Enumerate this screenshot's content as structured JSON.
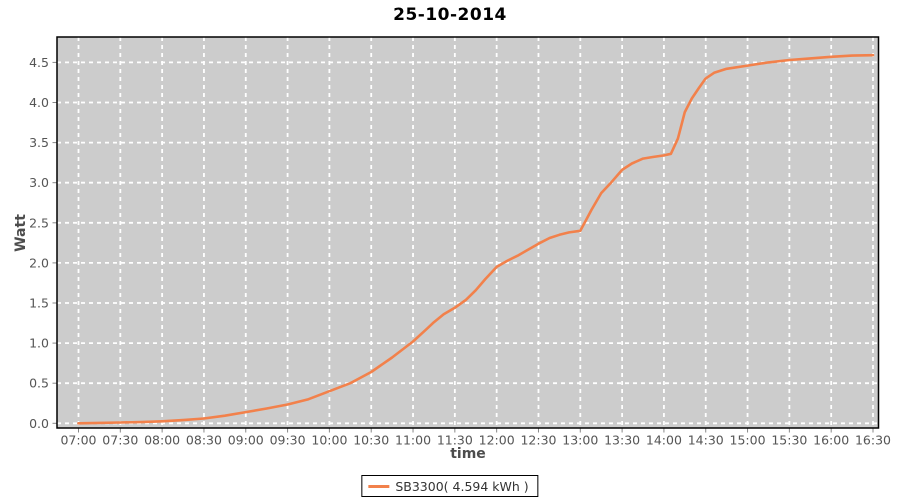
{
  "chart_data": {
    "type": "line",
    "title": "25-10-2014",
    "xlabel": "time",
    "ylabel": "Watt",
    "grid": true,
    "legend_position": "bottom",
    "plot_background": "#cccccc",
    "gridline_color": "#ffffff",
    "tick_label_color": "#555555",
    "x_tick_labels": [
      "07:00",
      "07:30",
      "08:00",
      "08:30",
      "09:00",
      "09:30",
      "10:00",
      "10:30",
      "11:00",
      "11:30",
      "12:00",
      "12:30",
      "13:00",
      "13:30",
      "14:00",
      "14:30",
      "15:00",
      "15:30",
      "16:00",
      "16:30"
    ],
    "y_tick_labels": [
      "0.0",
      "0.5",
      "1.0",
      "1.5",
      "2.0",
      "2.5",
      "3.0",
      "3.5",
      "4.0",
      "4.5"
    ],
    "ylim": [
      0,
      4.8
    ],
    "x_minutes_range": [
      0,
      570
    ],
    "total_kwh": 4.594,
    "series": [
      {
        "name": "SB3300( 4.594 kWh )",
        "color": "#f2814b",
        "points_minutes_kwh": [
          [
            0,
            0.0
          ],
          [
            15,
            0.005
          ],
          [
            30,
            0.01
          ],
          [
            45,
            0.015
          ],
          [
            60,
            0.025
          ],
          [
            75,
            0.04
          ],
          [
            90,
            0.06
          ],
          [
            105,
            0.095
          ],
          [
            120,
            0.14
          ],
          [
            135,
            0.185
          ],
          [
            150,
            0.235
          ],
          [
            165,
            0.3
          ],
          [
            180,
            0.4
          ],
          [
            195,
            0.5
          ],
          [
            210,
            0.64
          ],
          [
            225,
            0.82
          ],
          [
            240,
            1.02
          ],
          [
            250,
            1.18
          ],
          [
            255,
            1.26
          ],
          [
            262,
            1.36
          ],
          [
            270,
            1.44
          ],
          [
            278,
            1.54
          ],
          [
            285,
            1.66
          ],
          [
            292,
            1.8
          ],
          [
            300,
            1.95
          ],
          [
            308,
            2.03
          ],
          [
            315,
            2.09
          ],
          [
            322,
            2.16
          ],
          [
            330,
            2.24
          ],
          [
            338,
            2.31
          ],
          [
            345,
            2.35
          ],
          [
            352,
            2.38
          ],
          [
            360,
            2.4
          ],
          [
            364,
            2.53
          ],
          [
            368,
            2.66
          ],
          [
            375,
            2.87
          ],
          [
            382,
            3.0
          ],
          [
            390,
            3.16
          ],
          [
            397,
            3.24
          ],
          [
            405,
            3.3
          ],
          [
            412,
            3.32
          ],
          [
            420,
            3.34
          ],
          [
            425,
            3.36
          ],
          [
            430,
            3.55
          ],
          [
            435,
            3.88
          ],
          [
            440,
            4.05
          ],
          [
            445,
            4.18
          ],
          [
            450,
            4.3
          ],
          [
            456,
            4.37
          ],
          [
            465,
            4.42
          ],
          [
            480,
            4.46
          ],
          [
            495,
            4.5
          ],
          [
            510,
            4.53
          ],
          [
            525,
            4.55
          ],
          [
            540,
            4.57
          ],
          [
            555,
            4.585
          ],
          [
            570,
            4.59
          ]
        ]
      }
    ]
  }
}
